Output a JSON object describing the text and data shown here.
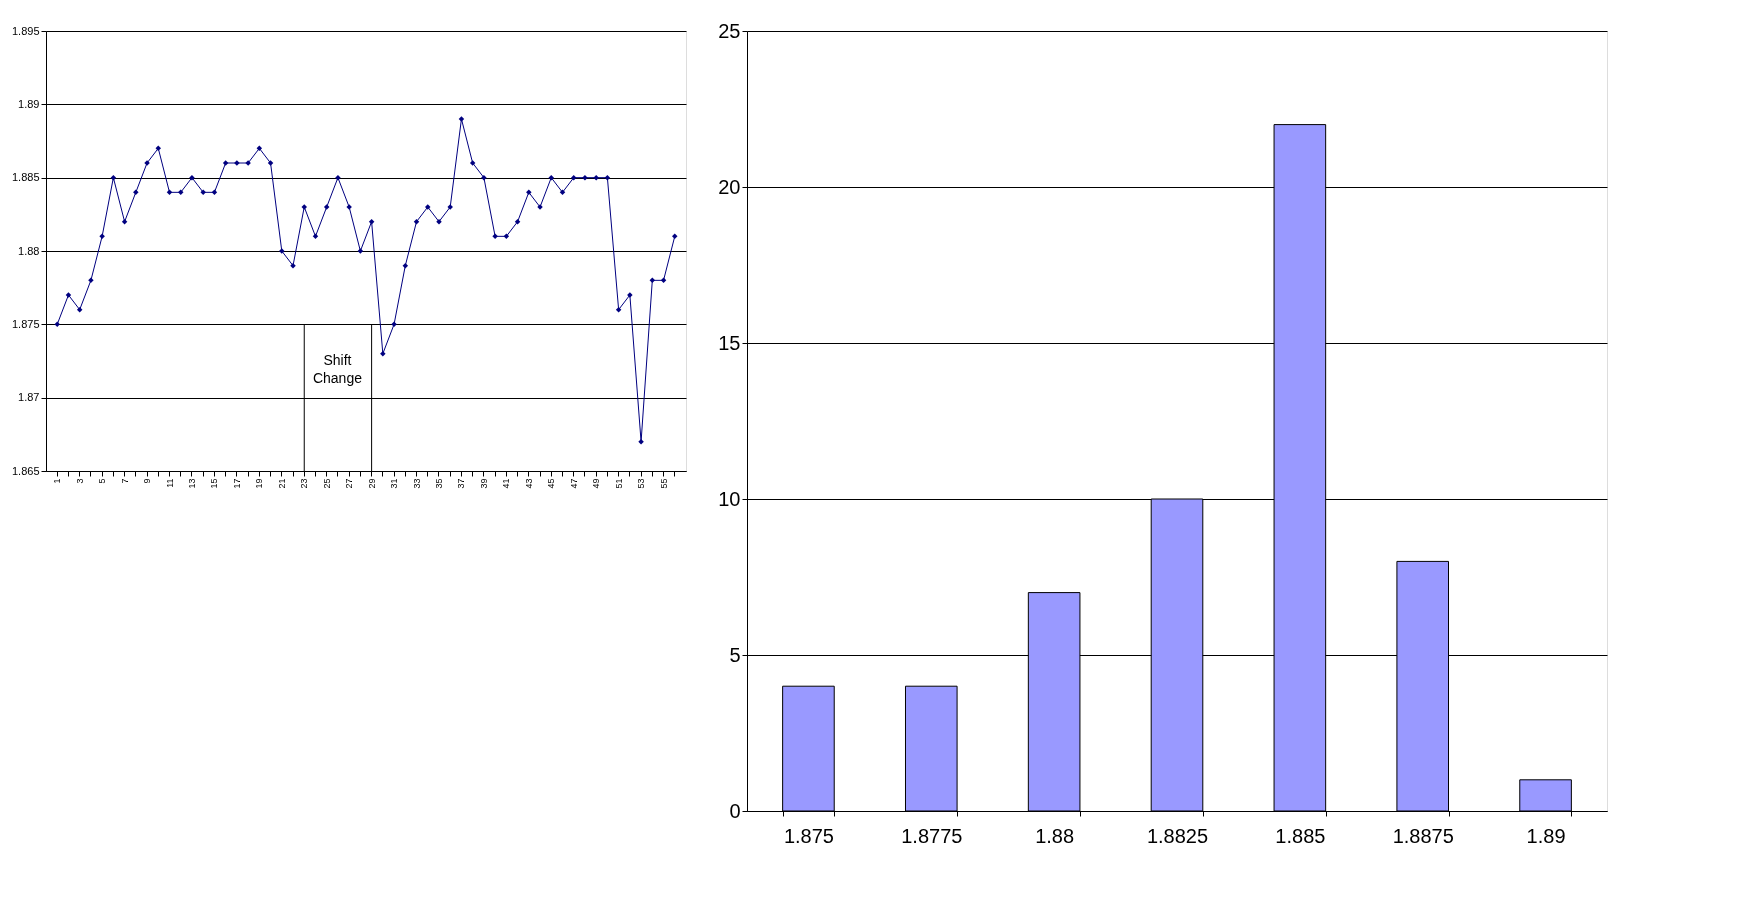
{
  "chart_data": [
    {
      "type": "line",
      "categories": [
        "1",
        null,
        "3",
        null,
        "5",
        null,
        "7",
        null,
        "9",
        null,
        "11",
        null,
        "13",
        null,
        "15",
        null,
        "17",
        null,
        "19",
        null,
        "21",
        null,
        "23",
        null,
        "25",
        null,
        "27",
        null,
        "29",
        null,
        "31",
        null,
        "33",
        null,
        "35",
        null,
        "37",
        null,
        "39",
        null,
        "41",
        null,
        "43",
        null,
        "45",
        null,
        "47",
        null,
        "49",
        null,
        "51",
        null,
        "53",
        null,
        "55",
        null
      ],
      "series": [
        {
          "color": "#000080",
          "values": [
            1.875,
            1.877,
            1.876,
            1.878,
            1.881,
            1.885,
            1.882,
            1.884,
            1.886,
            1.887,
            1.884,
            1.884,
            1.885,
            1.884,
            1.884,
            1.886,
            1.886,
            1.886,
            1.887,
            1.886,
            1.88,
            1.879,
            1.883,
            1.881,
            1.883,
            1.885,
            1.883,
            1.88,
            1.882,
            1.873,
            1.875,
            1.879,
            1.882,
            1.883,
            1.882,
            1.883,
            1.889,
            1.886,
            1.885,
            1.881,
            1.881,
            1.882,
            1.884,
            1.883,
            1.885,
            1.884,
            1.885,
            1.885,
            1.885,
            1.885,
            1.876,
            1.877,
            1.867,
            1.878,
            1.878,
            1.881
          ]
        }
      ],
      "ylim": [
        1.865,
        1.895
      ],
      "yticks": [
        1.865,
        1.87,
        1.875,
        1.88,
        1.885,
        1.89,
        1.895
      ],
      "marker": "diamond",
      "grid": "y",
      "ref_lines": [
        {
          "axis": "x",
          "value": "23",
          "color": "#000000"
        },
        {
          "axis": "x",
          "value": "29",
          "color": "#000000"
        }
      ],
      "annotations": [
        "Shift Change"
      ]
    },
    {
      "type": "bar",
      "categories": [
        "1.875",
        "1.8775",
        "1.88",
        "1.8825",
        "1.885",
        "1.8875",
        "1.89"
      ],
      "series": [
        {
          "color": "#9999ff",
          "values": [
            4,
            4,
            7,
            10,
            22,
            8,
            1
          ]
        }
      ],
      "ylim": [
        0,
        25
      ],
      "yticks": [
        0,
        5,
        10,
        15,
        20,
        25
      ],
      "grid": "y"
    }
  ]
}
